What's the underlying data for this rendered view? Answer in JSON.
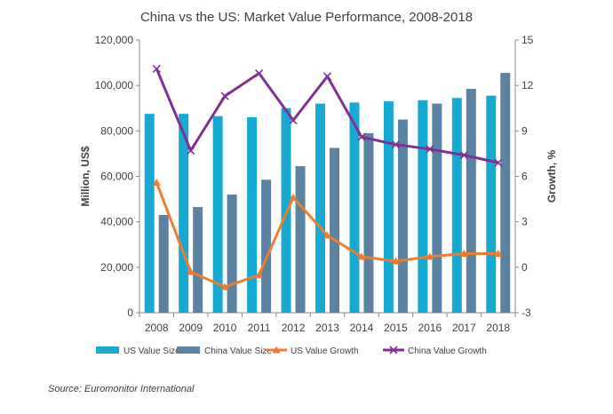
{
  "chart_data": {
    "type": "bar",
    "title": "China vs the US: Market Value Performance, 2008-2018",
    "categories": [
      "2008",
      "2009",
      "2010",
      "2011",
      "2012",
      "2013",
      "2014",
      "2015",
      "2016",
      "2017",
      "2018"
    ],
    "ylabel": "Million, US$",
    "y2label": "Growth, %",
    "ylim": [
      0,
      120000
    ],
    "y2lim": [
      -3,
      15
    ],
    "yticks": [
      "0",
      "20,000",
      "40,000",
      "60,000",
      "80,000",
      "100,000",
      "120,000"
    ],
    "y2ticks": [
      "-3",
      "0",
      "3",
      "6",
      "9",
      "12",
      "15"
    ],
    "grid": false,
    "series": [
      {
        "name": "US Value Size",
        "kind": "bar",
        "axis": "left",
        "color": "#17A9D1",
        "values": [
          87500,
          87500,
          86500,
          86000,
          90000,
          92000,
          92500,
          93000,
          93500,
          94500,
          95500
        ]
      },
      {
        "name": "China Value Size",
        "kind": "bar",
        "axis": "left",
        "color": "#5B82A0",
        "values": [
          43000,
          46500,
          52000,
          58500,
          64500,
          72500,
          79000,
          85000,
          92000,
          98500,
          105500
        ]
      },
      {
        "name": "US Value Growth",
        "kind": "line",
        "axis": "right",
        "marker": "triangle",
        "color": "#ED7D31",
        "values": [
          5.6,
          -0.3,
          -1.3,
          -0.5,
          4.6,
          2.1,
          0.7,
          0.4,
          0.7,
          0.9,
          0.9
        ]
      },
      {
        "name": "China Value Growth",
        "kind": "line",
        "axis": "right",
        "marker": "x",
        "color": "#7E3095",
        "values": [
          13.1,
          7.7,
          11.3,
          12.8,
          9.7,
          12.6,
          8.6,
          8.1,
          7.8,
          7.4,
          6.9
        ]
      }
    ],
    "legend": {
      "position": "bottom",
      "entries": [
        "US Value Size",
        "China Value Size",
        "US Value Growth",
        "China Value Growth"
      ]
    },
    "source": "Source: Euromonitor International"
  }
}
